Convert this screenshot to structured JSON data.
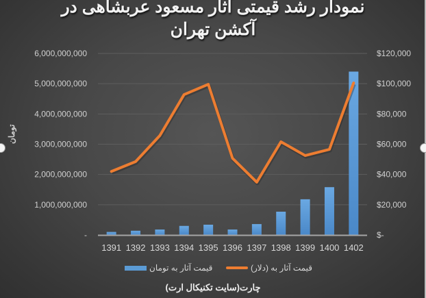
{
  "title": "نمودار رشد قیمتی آثار مسعود عربشاهی در آکشن تهران",
  "title_lines": [
    "نمودار رشد قیمتی آثار مسعود عربشاهی در",
    "آکشن تهران"
  ],
  "left_axis_title": "تومان",
  "footer": "چارت(سایت تکنیکال ارت)",
  "colors": {
    "bar": "#5b9bd5",
    "line": "#ed7d31",
    "background": "#464646",
    "text": "#d9d9d9"
  },
  "legend": [
    {
      "label": "قیمت آثار به (دلار)",
      "type": "line",
      "color": "#ed7d31"
    },
    {
      "label": "قیمت آثار به تومان",
      "type": "bar",
      "color": "#5b9bd5"
    }
  ],
  "chart_data": {
    "type": "bar",
    "title": "نمودار رشد قیمتی آثار مسعود عربشاهی در آکشن تهران",
    "xlabel": "",
    "ylabel": "تومان",
    "y2label": "",
    "categories": [
      "1391",
      "1392",
      "1393",
      "1394",
      "1395",
      "1396",
      "1397",
      "1398",
      "1399",
      "1400",
      "1402"
    ],
    "series": [
      {
        "name": "قیمت آثار به تومان",
        "type": "bar",
        "axis": "left",
        "color": "#5b9bd5",
        "values": [
          100000000,
          140000000,
          180000000,
          300000000,
          340000000,
          180000000,
          360000000,
          770000000,
          1180000000,
          1580000000,
          5400000000
        ]
      },
      {
        "name": "قیمت آثار به (دلار)",
        "type": "line",
        "axis": "right",
        "color": "#ed7d31",
        "values": [
          42000,
          48500,
          65700,
          92800,
          99600,
          50700,
          34900,
          61600,
          52500,
          56600,
          100500
        ]
      }
    ],
    "ylim": [
      0,
      6000000000
    ],
    "y2lim": [
      0,
      120000
    ],
    "left_ticks": [
      "-",
      "1,000,000,000",
      "2,000,000,000",
      "3,000,000,000",
      "4,000,000,000",
      "5,000,000,000",
      "6,000,000,000"
    ],
    "right_ticks": [
      "$-",
      "$20,000",
      "$40,000",
      "$60,000",
      "$80,000",
      "$100,000",
      "$120,000"
    ],
    "grid": true,
    "legend_position": "bottom"
  }
}
